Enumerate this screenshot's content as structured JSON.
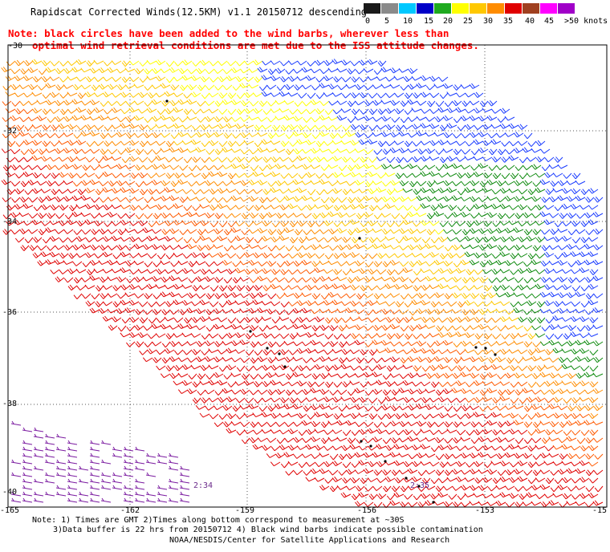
{
  "title": "Rapidscat Corrected Winds(12.5KM) v1.1 20150712 descending",
  "note_lines": [
    "Note: black circles have been added to the wind barbs, wherever less than",
    "optimal wind retrieval conditions are met due to the ISS attitude changes."
  ],
  "legend": {
    "labels": [
      "0",
      "5",
      "10",
      "15",
      "20",
      "25",
      "30",
      "35",
      "40",
      "45",
      ">50 knots"
    ],
    "colors": [
      "#000000",
      "#7a7a7a",
      "#00c8ff",
      "#1a5cff",
      "#0000c8",
      "#1faa1f",
      "#14d814",
      "#ffff00",
      "#ffc800",
      "#ff8c00",
      "#ff5a00",
      "#e00000",
      "#c80060",
      "#a0306a",
      "#ff00ff",
      "#a000c8",
      "#6a00a0"
    ]
  },
  "lat_labels": [
    "-30",
    "-32",
    "-34",
    "-36",
    "-38",
    "-40"
  ],
  "lon_labels": [
    "-165",
    "-162",
    "-159",
    "-156",
    "-153",
    "-15"
  ],
  "times": [
    "2:34",
    "2:35"
  ],
  "footer": {
    "line1": "Note: 1) Times are GMT 2)Times along bottom correspond to measurement at ~30S",
    "line2": "3)Data buffer is 22 hrs from 20150712 4) Black wind barbs indicate possible contamination",
    "line3": "NOAA/NESDIS/Center for Satellite Applications and Research"
  },
  "barb_colors": {
    "blue": "#1a3cff",
    "green": "#1faa1f",
    "dark_green": "#0e8a0e",
    "light_green": "#14d814",
    "yellow": "#ffff00",
    "gold": "#ffc800",
    "orange": "#ff8c00",
    "red_orange": "#ff5a00",
    "red": "#e00000",
    "purple": "#7a1aa0",
    "black": "#000000"
  }
}
